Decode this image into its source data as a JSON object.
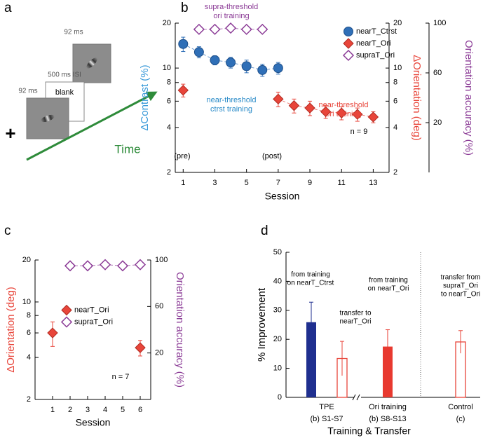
{
  "diagram": {
    "panel_label": "a",
    "labels": [
      "92 ms",
      "500 ms ISI",
      "blank",
      "92 ms",
      "Time",
      "+"
    ]
  },
  "chart_data": [
    {
      "type": "scatter",
      "panel_label": "b",
      "x_label": "Session",
      "y_label": "ΔContrast (%)",
      "y_label_color": "#3a9ad9",
      "y2_label": "ΔOrientation (deg)",
      "y2_label_color": "#e8453a",
      "y3_label": "Orientation accuracy (%)",
      "y3_label_color": "#8b3b96",
      "xlim": [
        0.5,
        14
      ],
      "xticks": [
        1,
        3,
        5,
        7,
        9,
        11,
        13
      ],
      "ylim": [
        2,
        20
      ],
      "yticks": [
        2,
        4,
        6,
        8,
        10,
        20
      ],
      "y_log": true,
      "y2lim": [
        2,
        20
      ],
      "y2ticks": [
        2,
        4,
        6,
        8,
        10,
        20
      ],
      "y2_log": true,
      "y3lim": [
        -20,
        100
      ],
      "y3ticks": [
        20,
        60,
        100
      ],
      "legend": "upper right",
      "series": [
        {
          "name": "nearT_Ctrst",
          "color": "#2f6fb7",
          "marker": "circle",
          "axis": "y",
          "x": [
            1,
            2,
            3,
            4,
            5,
            6,
            7
          ],
          "values": [
            14.5,
            12.8,
            11.3,
            10.9,
            10.3,
            9.7,
            10.0
          ],
          "errors": [
            1.6,
            1.1,
            0.8,
            0.9,
            1.0,
            0.9,
            0.9
          ]
        },
        {
          "name": "nearT_Ori",
          "color": "#e8453a",
          "marker": "diamond",
          "axis": "y2",
          "x": [
            1,
            7,
            8,
            9,
            10,
            11,
            12,
            13
          ],
          "values": [
            7.1,
            6.2,
            5.6,
            5.4,
            5.1,
            5.0,
            4.9,
            4.7
          ],
          "errors": [
            0.7,
            0.7,
            0.6,
            0.6,
            0.5,
            0.5,
            0.5,
            0.4
          ]
        },
        {
          "name": "supraT_Ori",
          "color": "#8b3b96",
          "marker": "open-diamond",
          "axis": "y3",
          "x": [
            2,
            3,
            4,
            5,
            6
          ],
          "values": [
            95,
            95,
            96,
            95,
            95
          ]
        }
      ],
      "annotations": [
        {
          "lines": [
            "supra-threshold",
            "ori training"
          ],
          "color": "#8b3b96"
        },
        {
          "lines": [
            "near-threshold",
            "ctrst training"
          ],
          "color": "#2a8bc8"
        },
        {
          "lines": [
            "near-threshold",
            "ori training"
          ],
          "color": "#e8453a"
        },
        {
          "lines": [
            "(pre)"
          ],
          "color": "#000000"
        },
        {
          "lines": [
            "(post)"
          ],
          "color": "#000000"
        },
        {
          "lines": [
            "n = 9"
          ],
          "color": "#000000"
        }
      ]
    },
    {
      "type": "scatter",
      "panel_label": "c",
      "x_label": "Session",
      "y_label": "ΔOrientation (deg)",
      "y_label_color": "#e8453a",
      "y3_label": "Orientation accuracy (%)",
      "y3_label_color": "#8b3b96",
      "xlim": [
        0,
        6.6
      ],
      "xticks": [
        1,
        2,
        3,
        4,
        5,
        6
      ],
      "ylim": [
        2,
        20
      ],
      "yticks": [
        2,
        4,
        6,
        8,
        10,
        20
      ],
      "y_log": true,
      "y3lim": [
        -20,
        100
      ],
      "y3ticks": [
        20,
        60,
        100
      ],
      "legend": "center left",
      "series": [
        {
          "name": "nearT_Ori",
          "color": "#e8453a",
          "marker": "diamond",
          "axis": "y",
          "x": [
            1,
            6
          ],
          "values": [
            6.0,
            4.7
          ],
          "errors": [
            1.2,
            0.6
          ]
        },
        {
          "name": "supraT_Ori",
          "color": "#8b3b96",
          "marker": "open-diamond",
          "axis": "y3",
          "x": [
            2,
            3,
            4,
            5,
            6
          ],
          "values": [
            95,
            95,
            96,
            95,
            96
          ]
        }
      ],
      "annotations": [
        {
          "lines": [
            "n = 7"
          ],
          "color": "#000000"
        }
      ]
    },
    {
      "type": "bar",
      "panel_label": "d",
      "x_label": "Training & Transfer",
      "y_label": "% Improvement",
      "ylim": [
        0,
        50
      ],
      "yticks": [
        0,
        10,
        20,
        30,
        40,
        50
      ],
      "values": [
        25.9,
        13.4,
        17.5,
        19.1
      ],
      "errors": [
        6.9,
        5.9,
        5.8,
        3.9
      ],
      "colors": [
        "#1f2f8f",
        "#e8453a",
        "#e8392f",
        "#e8453a"
      ],
      "fills": [
        "filled",
        "open",
        "filled",
        "open"
      ],
      "groups": [
        {
          "label": "TPE",
          "sublabel": "(b) S1-S7"
        },
        {
          "label": "Ori training",
          "sublabel": "(b) S8-S13"
        },
        {
          "label": "Control",
          "sublabel": "(c)"
        }
      ],
      "annotations": [
        {
          "lines": [
            "from training",
            "on nearT_Ctrst"
          ]
        },
        {
          "lines": [
            "transfer to",
            "nearT_Ori"
          ]
        },
        {
          "lines": [
            "from training",
            "on nearT_Ori"
          ]
        },
        {
          "lines": [
            "transfer from",
            "supraT_Ori",
            "to nearT_Ori"
          ]
        }
      ]
    }
  ]
}
